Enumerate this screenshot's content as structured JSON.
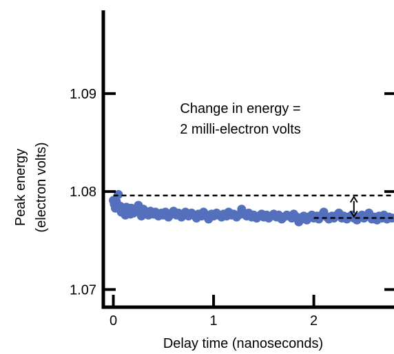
{
  "colors": {
    "points": "#5470bd",
    "axis": "#000000",
    "reference_lines": "#000000"
  },
  "chart_data": {
    "type": "scatter",
    "title": "",
    "xlabel": "Delay time (nanoseconds)",
    "ylabel_line1": "Peak energy",
    "ylabel_line2": "(electron volts)",
    "xlim": [
      -0.1,
      2.8
    ],
    "ylim": [
      1.0682,
      1.0985
    ],
    "x_ticks": [
      0,
      1,
      2
    ],
    "x_tick_labels": [
      "0",
      "1",
      "2"
    ],
    "y_ticks": [
      1.07,
      1.08,
      1.09
    ],
    "y_tick_labels": [
      "1.07",
      "1.08",
      "1.09"
    ],
    "grid": false,
    "legend": "none",
    "annotation_line1": "Change in energy =",
    "annotation_line2": "2 milli-electron volts",
    "reference_lines": [
      {
        "y": 1.0796,
        "x_from": 0.0,
        "x_to": 2.8,
        "style": "dashed"
      },
      {
        "y": 1.0773,
        "x_from": 2.0,
        "x_to": 2.8,
        "style": "dashed"
      }
    ],
    "difference_arrow": {
      "x": 2.4,
      "y_from": 1.0773,
      "y_to": 1.0796
    },
    "series": [
      {
        "x": [
          0.0,
          0.01,
          0.02,
          0.03,
          0.05,
          0.07,
          0.08,
          0.1,
          0.12,
          0.13,
          0.15,
          0.17,
          0.18,
          0.2,
          0.22,
          0.25,
          0.27,
          0.28,
          0.3,
          0.32,
          0.35,
          0.37,
          0.4,
          0.42,
          0.45,
          0.48,
          0.5,
          0.52,
          0.55,
          0.58,
          0.6,
          0.63,
          0.65,
          0.68,
          0.7,
          0.72,
          0.75,
          0.78,
          0.8,
          0.83,
          0.85,
          0.88,
          0.9,
          0.93,
          0.95,
          0.98,
          1.0,
          1.03,
          1.05,
          1.08,
          1.1,
          1.13,
          1.15,
          1.18,
          1.2,
          1.23,
          1.25,
          1.28,
          1.3,
          1.33,
          1.35,
          1.38,
          1.4,
          1.43,
          1.45,
          1.48,
          1.5,
          1.53,
          1.55,
          1.58,
          1.6,
          1.63,
          1.65,
          1.68,
          1.7,
          1.73,
          1.75,
          1.78,
          1.8,
          1.83,
          1.85,
          1.88,
          1.9,
          1.93,
          1.95,
          1.98,
          2.0,
          2.03,
          2.05,
          2.08,
          2.1,
          2.13,
          2.15,
          2.18,
          2.2,
          2.23,
          2.25,
          2.28,
          2.3,
          2.33,
          2.35,
          2.38,
          2.4,
          2.43,
          2.45,
          2.48,
          2.5,
          2.53,
          2.55,
          2.58,
          2.6,
          2.63,
          2.65,
          2.68,
          2.7,
          2.73,
          2.75,
          2.78
        ],
        "y": [
          1.0791,
          1.0787,
          1.0783,
          1.079,
          1.0797,
          1.0785,
          1.0779,
          1.0782,
          1.0776,
          1.0784,
          1.078,
          1.0777,
          1.0783,
          1.0778,
          1.0781,
          1.0786,
          1.0779,
          1.0775,
          1.0782,
          1.0778,
          1.0776,
          1.078,
          1.0777,
          1.0779,
          1.0775,
          1.0778,
          1.0776,
          1.0779,
          1.0774,
          1.0777,
          1.078,
          1.0776,
          1.0778,
          1.0774,
          1.0777,
          1.0779,
          1.0775,
          1.0778,
          1.0776,
          1.0773,
          1.0777,
          1.0775,
          1.0779,
          1.0776,
          1.0772,
          1.0777,
          1.0775,
          1.0778,
          1.0776,
          1.0774,
          1.0777,
          1.0775,
          1.0779,
          1.0776,
          1.0777,
          1.0774,
          1.0776,
          1.0782,
          1.0777,
          1.0775,
          1.0778,
          1.0774,
          1.0776,
          1.0773,
          1.0775,
          1.0777,
          1.0774,
          1.0776,
          1.0773,
          1.0775,
          1.0777,
          1.0774,
          1.0776,
          1.0772,
          1.0774,
          1.0776,
          1.0775,
          1.0773,
          1.0777,
          1.0774,
          1.0769,
          1.0772,
          1.0775,
          1.0771,
          1.0774,
          1.0776,
          1.0773,
          1.0775,
          1.0772,
          1.0776,
          1.0779,
          1.0774,
          1.0772,
          1.0775,
          1.0773,
          1.0776,
          1.0778,
          1.0773,
          1.0775,
          1.0772,
          1.0774,
          1.0776,
          1.0773,
          1.0771,
          1.0774,
          1.0776,
          1.0773,
          1.0775,
          1.0778,
          1.0772,
          1.0774,
          1.0771,
          1.0775,
          1.0773,
          1.0776,
          1.0772,
          1.0774,
          1.0773
        ]
      }
    ]
  }
}
